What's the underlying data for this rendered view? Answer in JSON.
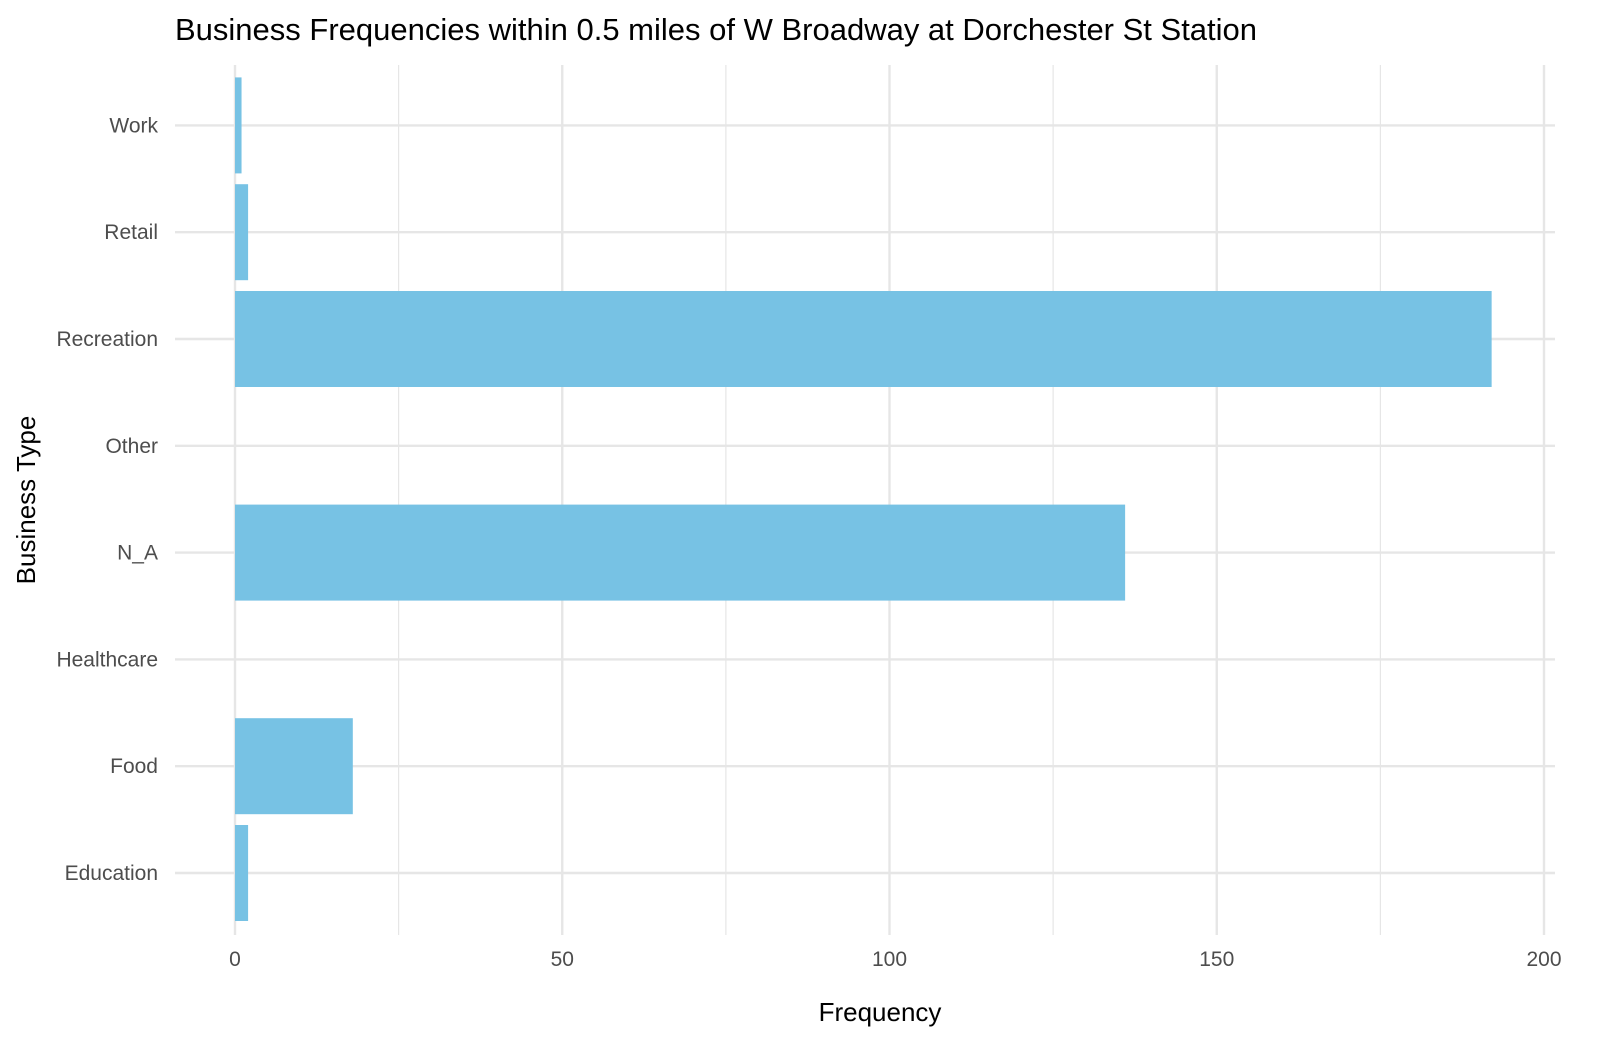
{
  "chart_data": {
    "type": "bar",
    "orientation": "horizontal",
    "title": "Business Frequencies within 0.5 miles of W Broadway at Dorchester St Station",
    "xlabel": "Frequency",
    "ylabel": "Business Type",
    "categories": [
      "Education",
      "Food",
      "Healthcare",
      "N_A",
      "Other",
      "Recreation",
      "Retail",
      "Work"
    ],
    "values": [
      2,
      18,
      0,
      136,
      0,
      192,
      2,
      1
    ],
    "xlim": [
      0,
      200
    ],
    "xticks": [
      0,
      50,
      100,
      150,
      200
    ],
    "grid": true,
    "legend": "none",
    "bar_color": "#77c2e4",
    "grid_color": "#e6e6e6"
  }
}
